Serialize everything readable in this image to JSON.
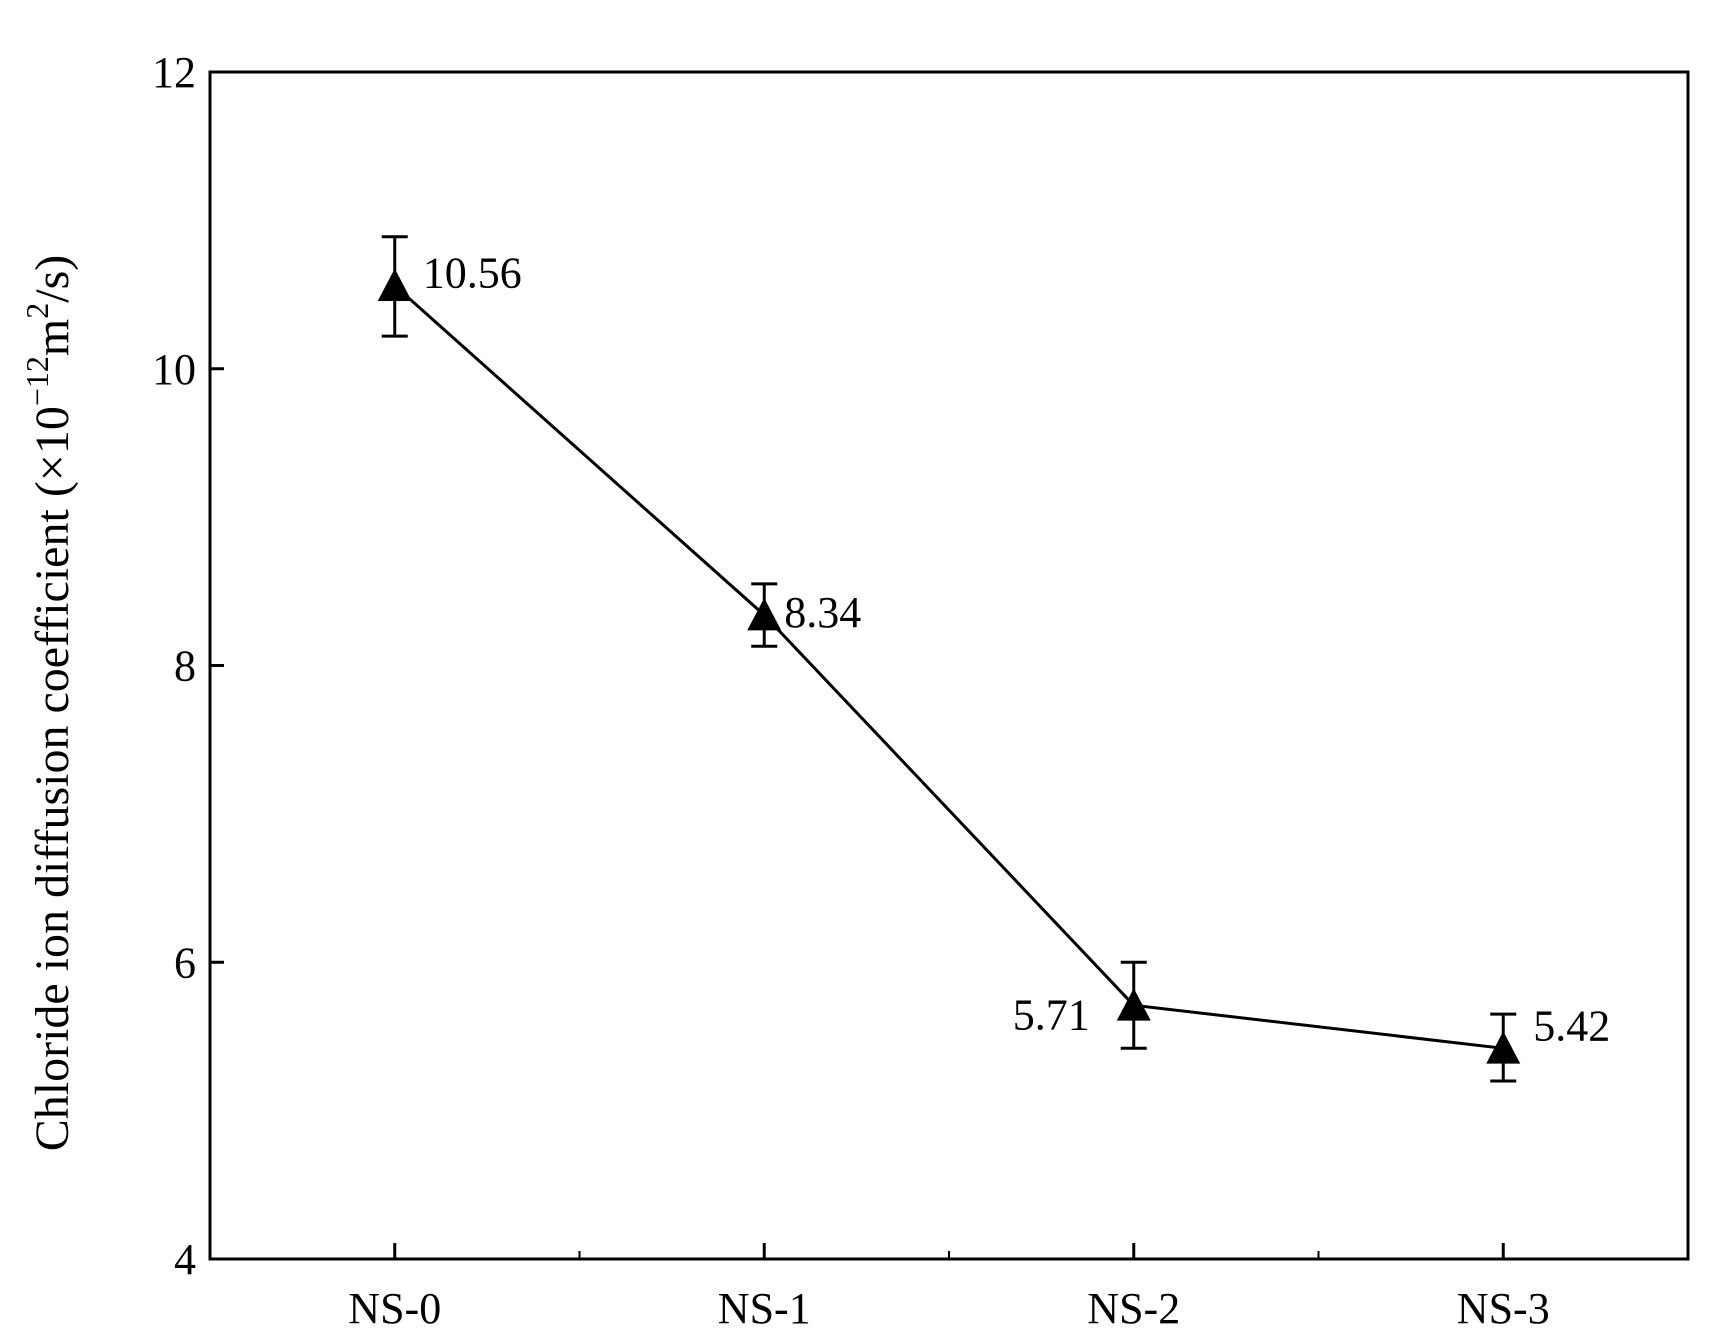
{
  "chart_data": {
    "type": "line",
    "categories": [
      "NS-0",
      "NS-1",
      "NS-2",
      "NS-3"
    ],
    "values": [
      10.56,
      8.34,
      5.71,
      5.42
    ],
    "error_bars": [
      [
        10.22,
        10.89
      ],
      [
        8.13,
        8.55
      ],
      [
        5.42,
        6.0
      ],
      [
        5.2,
        5.65
      ]
    ],
    "data_labels": [
      "10.56",
      "8.34",
      "5.71",
      "5.42"
    ],
    "marker": "triangle",
    "ylabel_text": "Chloride ion diffusion coefficient (×10",
    "ylabel_exp1": "−12",
    "ylabel_mid": "m",
    "ylabel_exp2": "2",
    "ylabel_end": "/s)",
    "xlabel": "",
    "title": "",
    "ylim": [
      4,
      12
    ],
    "yticks": [
      4,
      6,
      8,
      10,
      12
    ],
    "grid": false,
    "colors": {
      "line": "#000000",
      "marker": "#000000",
      "axis": "#000000"
    }
  }
}
